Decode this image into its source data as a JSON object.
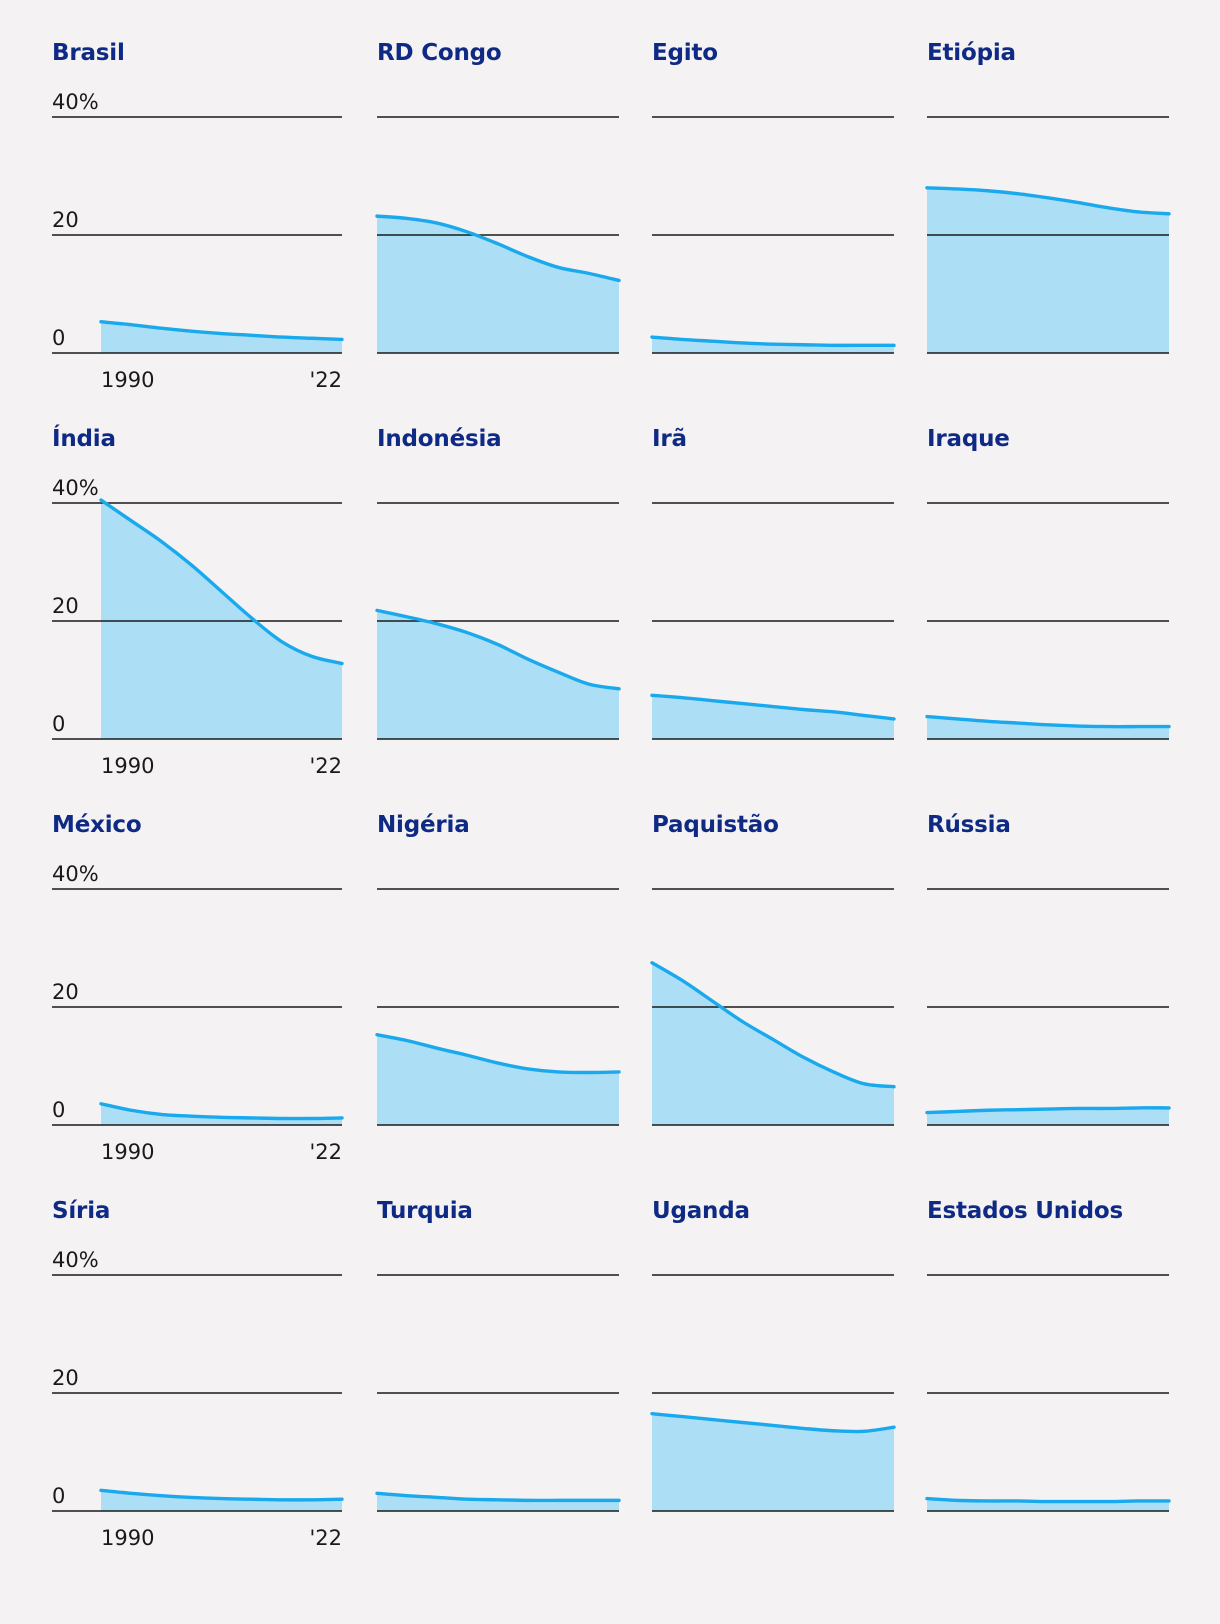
{
  "chart_data": {
    "type": "area",
    "layout": "small-multiples",
    "rows": 4,
    "columns": 4,
    "y_unit": "%",
    "ylim": [
      0,
      40
    ],
    "yticks": [
      0,
      20,
      40
    ],
    "ytick_labels": [
      "0",
      "20",
      "40%"
    ],
    "xlim": [
      1990,
      2022
    ],
    "xtick_labels": [
      "1990",
      "'22"
    ],
    "x": [
      1990,
      1994,
      1998,
      2002,
      2006,
      2010,
      2014,
      2018,
      2022
    ],
    "series": [
      {
        "name": "Brasil",
        "values": [
          5.3,
          4.8,
          4.2,
          3.7,
          3.3,
          3.0,
          2.7,
          2.5,
          2.3
        ]
      },
      {
        "name": "RD Congo",
        "values": [
          23.2,
          22.8,
          22.0,
          20.5,
          18.5,
          16.3,
          14.5,
          13.5,
          12.3
        ]
      },
      {
        "name": "Egito",
        "values": [
          2.7,
          2.3,
          2.0,
          1.7,
          1.5,
          1.4,
          1.3,
          1.3,
          1.3
        ]
      },
      {
        "name": "Etiópia",
        "values": [
          28.0,
          27.8,
          27.5,
          27.0,
          26.3,
          25.5,
          24.6,
          23.9,
          23.6
        ]
      },
      {
        "name": "Índia",
        "values": [
          40.5,
          37.0,
          33.5,
          29.5,
          25.0,
          20.5,
          16.5,
          14.0,
          12.8
        ]
      },
      {
        "name": "Indonésia",
        "values": [
          21.8,
          20.7,
          19.5,
          18.0,
          16.0,
          13.5,
          11.3,
          9.3,
          8.5
        ]
      },
      {
        "name": "Irã",
        "values": [
          7.4,
          7.0,
          6.5,
          6.0,
          5.5,
          5.0,
          4.6,
          4.0,
          3.4
        ]
      },
      {
        "name": "Iraque",
        "values": [
          3.8,
          3.4,
          3.0,
          2.7,
          2.4,
          2.2,
          2.1,
          2.1,
          2.1
        ]
      },
      {
        "name": "México",
        "values": [
          3.6,
          2.5,
          1.8,
          1.5,
          1.3,
          1.2,
          1.1,
          1.1,
          1.2
        ]
      },
      {
        "name": "Nigéria",
        "values": [
          15.3,
          14.3,
          13.0,
          11.8,
          10.5,
          9.5,
          9.0,
          8.9,
          9.0
        ]
      },
      {
        "name": "Paquistão",
        "values": [
          27.5,
          24.5,
          21.0,
          17.5,
          14.5,
          11.5,
          9.0,
          7.0,
          6.5
        ]
      },
      {
        "name": "Rússia",
        "values": [
          2.1,
          2.3,
          2.5,
          2.6,
          2.7,
          2.8,
          2.8,
          2.9,
          2.9
        ]
      },
      {
        "name": "Síria",
        "values": [
          3.5,
          3.0,
          2.6,
          2.3,
          2.1,
          2.0,
          1.9,
          1.9,
          2.0
        ]
      },
      {
        "name": "Turquia",
        "values": [
          3.0,
          2.6,
          2.3,
          2.0,
          1.9,
          1.8,
          1.8,
          1.8,
          1.8
        ]
      },
      {
        "name": "Uganda",
        "values": [
          16.5,
          16.0,
          15.5,
          15.0,
          14.5,
          14.0,
          13.6,
          13.5,
          14.2
        ]
      },
      {
        "name": "Estados Unidos",
        "values": [
          2.1,
          1.8,
          1.7,
          1.7,
          1.6,
          1.6,
          1.6,
          1.7,
          1.7
        ]
      }
    ],
    "colors": {
      "line": "#1aa9ec",
      "fill": "#acdff5",
      "title": "#0f2a85",
      "gridline": "#1a1a1a",
      "background": "#f4f2f3"
    }
  }
}
